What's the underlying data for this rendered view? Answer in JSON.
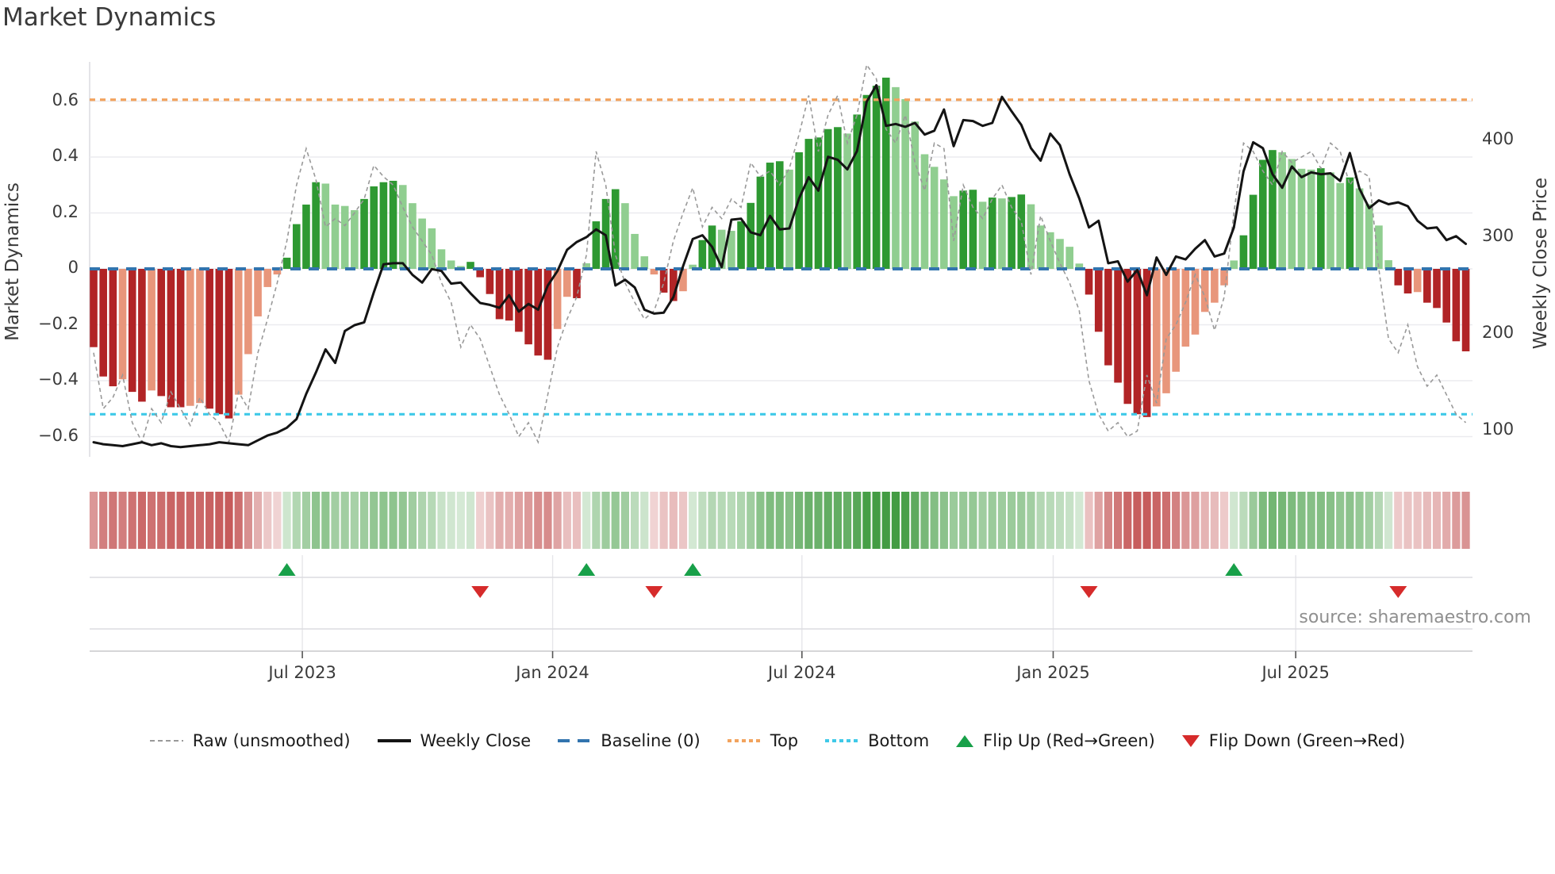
{
  "title": "Market Dynamics",
  "source": "source: sharemaestro.com",
  "axes": {
    "left_label": "Market Dynamics",
    "right_label": "Weekly Close Price",
    "left_ticks": [
      "0.6",
      "0.4",
      "0.2",
      "0",
      "−0.2",
      "−0.4",
      "−0.6"
    ],
    "left_tick_values": [
      0.6,
      0.4,
      0.2,
      0,
      -0.2,
      -0.4,
      -0.6
    ],
    "right_ticks": [
      "400",
      "300",
      "200",
      "100"
    ],
    "right_tick_values": [
      400,
      300,
      200,
      100
    ],
    "x_ticks": [
      {
        "label": "Jul 2023",
        "week": 21.6
      },
      {
        "label": "Jan 2024",
        "week": 47.5
      },
      {
        "label": "Jul 2024",
        "week": 73.3
      },
      {
        "label": "Jan 2025",
        "week": 99.3
      },
      {
        "label": "Jul 2025",
        "week": 124.4
      }
    ]
  },
  "palette": {
    "pos_dark": "#2E9932",
    "pos_light": "#90CE90",
    "neg_dark": "#B12426",
    "neg_light": "#E8967B",
    "price_line": "#141414",
    "raw_line": "#999999",
    "baseline": "#3274AE",
    "top": "#F2A35E",
    "bottom": "#3FC9E8",
    "flip_up": "#18A049",
    "flip_down": "#D62B2B",
    "grid": "#EBEBEF",
    "spine": "#D9D9DE",
    "band_line": "#DCDCE0",
    "heat_pos": "34,139,34",
    "heat_neg": "178,34,34"
  },
  "legend": [
    {
      "label": "Raw (unsmoothed)",
      "type": "raw"
    },
    {
      "label": "Weekly Close",
      "type": "close"
    },
    {
      "label": "Baseline (0)",
      "type": "baseline"
    },
    {
      "label": "Top",
      "type": "top"
    },
    {
      "label": "Bottom",
      "type": "bottom"
    },
    {
      "label": "Flip Up (Red→Green)",
      "type": "flip-up"
    },
    {
      "label": "Flip Down (Green→Red)",
      "type": "flip-down"
    }
  ],
  "chart_data": {
    "type": "bar",
    "x_unit": "weekly (late Jan 2023 – late Oct 2025)",
    "title": "Market Dynamics",
    "ylabel_left": "Market Dynamics",
    "ylabel_right": "Weekly Close Price",
    "ylim_left": [
      -0.72,
      0.75
    ],
    "right_axis_ticks": [
      100,
      200,
      300,
      400
    ],
    "baseline": 0,
    "top_level": 0.605,
    "bottom_level": -0.52,
    "grid": "horizontal only in main panel, vertical in flip-marker panel",
    "legend_position": "bottom center",
    "heatmap": "strip below main chart, color = sign/magnitude of dynamics values",
    "flip_up_weeks": [
      20,
      51,
      62,
      118
    ],
    "flip_down_weeks": [
      40,
      58,
      103,
      135
    ],
    "series": [
      {
        "name": "Market Dynamics (smoothed bars)",
        "type": "bar",
        "values": [
          -0.28,
          -0.385,
          -0.42,
          -0.395,
          -0.44,
          -0.475,
          -0.435,
          -0.455,
          -0.495,
          -0.495,
          -0.49,
          -0.48,
          -0.5,
          -0.52,
          -0.535,
          -0.45,
          -0.305,
          -0.17,
          -0.065,
          -0.02,
          0.04,
          0.16,
          0.23,
          0.31,
          0.305,
          0.23,
          0.225,
          0.21,
          0.25,
          0.295,
          0.31,
          0.315,
          0.3,
          0.235,
          0.18,
          0.145,
          0.07,
          0.03,
          0.01,
          0.025,
          -0.03,
          -0.09,
          -0.18,
          -0.185,
          -0.225,
          -0.27,
          -0.31,
          -0.325,
          -0.215,
          -0.1,
          -0.105,
          0.02,
          0.17,
          0.25,
          0.285,
          0.235,
          0.125,
          0.045,
          -0.02,
          -0.085,
          -0.115,
          -0.08,
          0.015,
          0.103,
          0.155,
          0.14,
          0.136,
          0.17,
          0.236,
          0.33,
          0.38,
          0.385,
          0.355,
          0.417,
          0.465,
          0.47,
          0.5,
          0.507,
          0.484,
          0.552,
          0.622,
          0.655,
          0.684,
          0.65,
          0.607,
          0.527,
          0.41,
          0.365,
          0.32,
          0.26,
          0.28,
          0.283,
          0.24,
          0.255,
          0.252,
          0.257,
          0.266,
          0.231,
          0.155,
          0.131,
          0.107,
          0.079,
          0.019,
          -0.092,
          -0.225,
          -0.345,
          -0.407,
          -0.483,
          -0.52,
          -0.53,
          -0.492,
          -0.445,
          -0.368,
          -0.278,
          -0.235,
          -0.154,
          -0.121,
          -0.059,
          0.03,
          0.12,
          0.265,
          0.39,
          0.425,
          0.417,
          0.393,
          0.358,
          0.355,
          0.36,
          0.345,
          0.307,
          0.327,
          0.288,
          0.231,
          0.155,
          0.031,
          -0.059,
          -0.088,
          -0.083,
          -0.121,
          -0.14,
          -0.192,
          -0.259,
          -0.295
        ]
      },
      {
        "name": "Raw (unsmoothed)",
        "type": "line",
        "values": [
          -0.3,
          -0.5,
          -0.46,
          -0.38,
          -0.55,
          -0.62,
          -0.5,
          -0.55,
          -0.44,
          -0.5,
          -0.56,
          -0.46,
          -0.52,
          -0.55,
          -0.62,
          -0.44,
          -0.5,
          -0.3,
          -0.18,
          -0.05,
          0.1,
          0.3,
          0.43,
          0.32,
          0.15,
          0.18,
          0.155,
          0.2,
          0.25,
          0.37,
          0.33,
          0.3,
          0.22,
          0.15,
          0.1,
          0.05,
          -0.05,
          -0.12,
          -0.28,
          -0.2,
          -0.25,
          -0.35,
          -0.45,
          -0.52,
          -0.6,
          -0.55,
          -0.62,
          -0.45,
          -0.28,
          -0.18,
          -0.1,
          0.05,
          0.42,
          0.3,
          0.05,
          -0.05,
          -0.12,
          -0.18,
          -0.15,
          -0.05,
          0.1,
          0.2,
          0.29,
          0.15,
          0.22,
          0.18,
          0.25,
          0.22,
          0.38,
          0.33,
          0.35,
          0.3,
          0.36,
          0.48,
          0.62,
          0.42,
          0.55,
          0.62,
          0.45,
          0.55,
          0.73,
          0.68,
          0.5,
          0.45,
          0.55,
          0.38,
          0.28,
          0.45,
          0.43,
          0.1,
          0.3,
          0.22,
          0.18,
          0.25,
          0.3,
          0.22,
          0.17,
          -0.02,
          0.19,
          0.1,
          0.02,
          -0.05,
          -0.15,
          -0.4,
          -0.52,
          -0.58,
          -0.55,
          -0.6,
          -0.58,
          -0.38,
          -0.48,
          -0.25,
          -0.2,
          -0.12,
          -0.02,
          -0.1,
          -0.22,
          -0.1,
          0.2,
          0.45,
          0.42,
          0.35,
          0.3,
          0.42,
          0.38,
          0.4,
          0.42,
          0.36,
          0.45,
          0.42,
          0.3,
          0.35,
          0.33,
          0.0,
          -0.25,
          -0.3,
          -0.2,
          -0.35,
          -0.42,
          -0.38,
          -0.45,
          -0.52,
          -0.55
        ]
      },
      {
        "name": "Weekly Close",
        "type": "line",
        "axis": "right",
        "values": [
          88,
          86,
          85,
          84,
          86,
          88,
          85,
          87,
          84,
          83,
          84,
          85,
          86,
          88,
          87,
          86,
          85,
          90,
          95,
          98,
          103,
          112,
          138,
          160,
          184,
          170,
          203,
          209,
          212,
          243,
          272,
          273,
          273,
          261,
          253,
          267,
          265,
          252,
          253,
          242,
          232,
          230,
          227,
          240,
          223,
          231,
          225,
          250,
          265,
          287,
          295,
          300,
          308,
          302,
          250,
          256,
          248,
          225,
          221,
          222,
          238,
          270,
          298,
          302,
          290,
          269,
          318,
          319,
          305,
          302,
          322,
          308,
          309,
          340,
          362,
          348,
          383,
          380,
          370,
          389,
          440,
          457,
          415,
          417,
          414,
          418,
          406,
          410,
          432,
          394,
          421,
          420,
          415,
          418,
          445,
          430,
          416,
          392,
          379,
          407,
          395,
          365,
          340,
          310,
          317,
          273,
          275,
          254,
          266,
          240,
          279,
          261,
          280,
          277,
          288,
          297,
          280,
          283,
          310,
          368,
          398,
          392,
          365,
          351,
          373,
          362,
          367,
          365,
          366,
          358,
          387,
          350,
          330,
          338,
          334,
          336,
          332,
          317,
          309,
          310,
          297,
          301,
          293
        ]
      }
    ]
  }
}
